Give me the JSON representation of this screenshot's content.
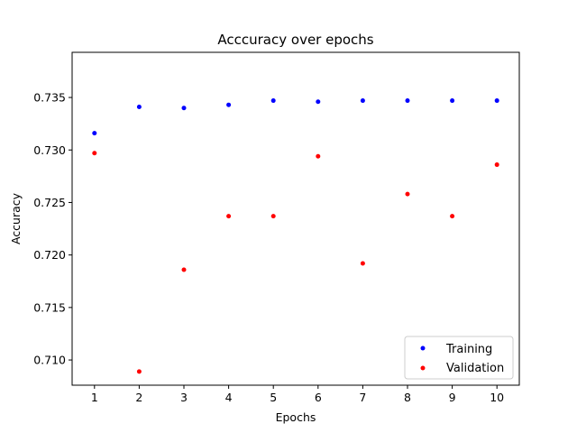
{
  "chart_data": {
    "type": "scatter",
    "title": "Acccuracy over epochs",
    "xlabel": "Epochs",
    "ylabel": "Accuracy",
    "x": [
      1,
      2,
      3,
      4,
      5,
      6,
      7,
      8,
      9,
      10
    ],
    "xlim": [
      0.5,
      10.5
    ],
    "ylim": [
      0.7076,
      0.7393
    ],
    "xticks": [
      "1",
      "2",
      "3",
      "4",
      "5",
      "6",
      "7",
      "8",
      "9",
      "10"
    ],
    "yticks": [
      "0.710",
      "0.715",
      "0.720",
      "0.725",
      "0.730",
      "0.735"
    ],
    "series": [
      {
        "name": "Training",
        "color": "#0000ff",
        "values": [
          0.7316,
          0.7341,
          0.734,
          0.7343,
          0.7347,
          0.7346,
          0.7347,
          0.7347,
          0.7347,
          0.7347
        ]
      },
      {
        "name": "Validation",
        "color": "#ff0000",
        "values": [
          0.7297,
          0.7089,
          0.7186,
          0.7237,
          0.7237,
          0.7294,
          0.7192,
          0.7258,
          0.7237,
          0.7286
        ]
      }
    ],
    "grid": false,
    "legend_position": "lower-right"
  }
}
